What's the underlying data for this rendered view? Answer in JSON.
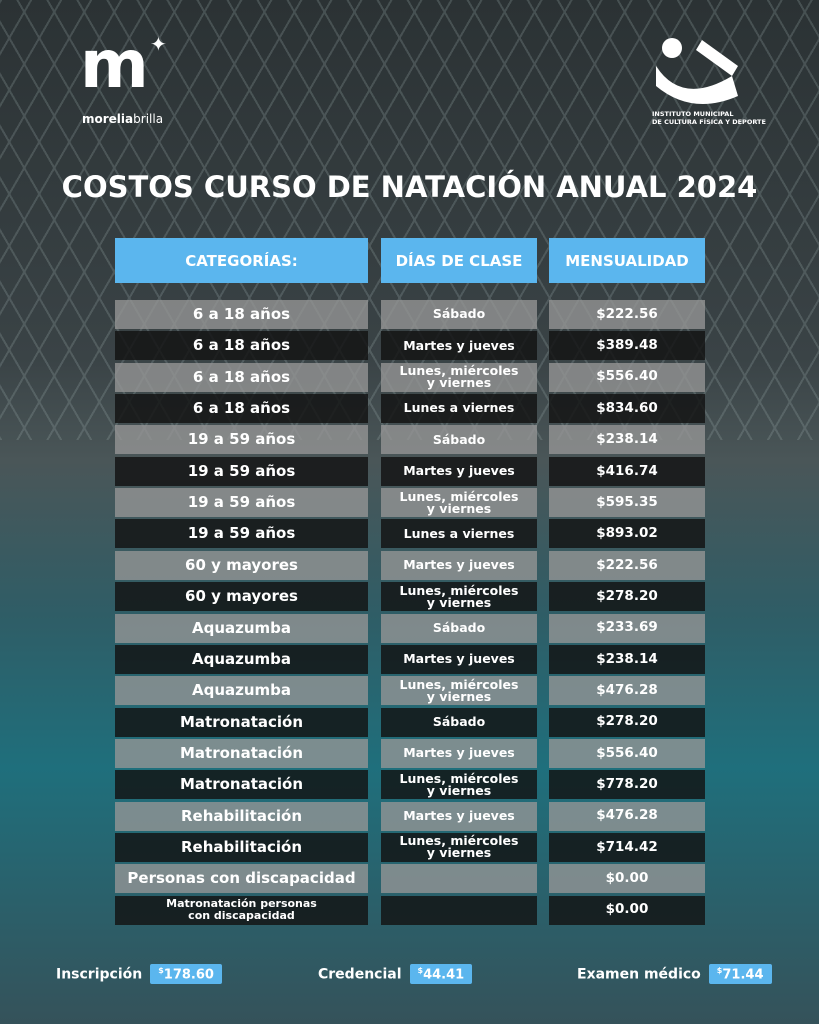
{
  "header": {
    "logo_mark": "m",
    "brand_bold": "morelia",
    "brand_light": "brilla",
    "institute_lines": [
      "INSTITUTO MUNICIPAL",
      "DE CULTURA FÍSICA Y DEPORTE"
    ]
  },
  "title": "COSTOS CURSO DE NATACIÓN ANUAL 2024",
  "table": {
    "columns": [
      "CATEGORÍAS:",
      "DÍAS DE CLASE",
      "MENSUALIDAD"
    ],
    "rows": [
      {
        "category": "6 a 18 años",
        "days": "Sábado",
        "price": "$222.56"
      },
      {
        "category": "6 a 18 años",
        "days": "Martes y jueves",
        "price": "$389.48"
      },
      {
        "category": "6 a 18 años",
        "days": "Lunes, miércoles\ny viernes",
        "price": "$556.40"
      },
      {
        "category": "6 a 18 años",
        "days": "Lunes a viernes",
        "price": "$834.60"
      },
      {
        "category": "19 a 59 años",
        "days": "Sábado",
        "price": "$238.14"
      },
      {
        "category": "19 a 59 años",
        "days": "Martes y jueves",
        "price": "$416.74"
      },
      {
        "category": "19 a 59 años",
        "days": "Lunes, miércoles\ny viernes",
        "price": "$595.35"
      },
      {
        "category": "19 a 59 años",
        "days": "Lunes a viernes",
        "price": "$893.02"
      },
      {
        "category": "60 y  mayores",
        "days": "Martes y jueves",
        "price": "$222.56"
      },
      {
        "category": "60 y  mayores",
        "days": "Lunes, miércoles\ny viernes",
        "price": "$278.20"
      },
      {
        "category": "Aquazumba",
        "days": "Sábado",
        "price": "$233.69"
      },
      {
        "category": "Aquazumba",
        "days": "Martes y jueves",
        "price": "$238.14"
      },
      {
        "category": "Aquazumba",
        "days": "Lunes, miércoles\ny viernes",
        "price": "$476.28"
      },
      {
        "category": "Matronatación",
        "days": "Sábado",
        "price": "$278.20"
      },
      {
        "category": "Matronatación",
        "days": "Martes y jueves",
        "price": "$556.40"
      },
      {
        "category": "Matronatación",
        "days": "Lunes, miércoles\ny viernes",
        "price": "$778.20"
      },
      {
        "category": "Rehabilitación",
        "days": "Martes y jueves",
        "price": "$476.28"
      },
      {
        "category": "Rehabilitación",
        "days": "Lunes, miércoles\ny viernes",
        "price": "$714.42"
      },
      {
        "category": "Personas con discapacidad",
        "price": "$0.00"
      },
      {
        "category": "Matronatación personas\ncon discapacidad",
        "price": "$0.00"
      }
    ]
  },
  "footer": [
    {
      "label": "Inscripción",
      "currency": "$",
      "amount": "178.60"
    },
    {
      "label": "Credencial",
      "currency": "$",
      "amount": "44.41"
    },
    {
      "label": "Examen médico",
      "currency": "$",
      "amount": "71.44"
    }
  ]
}
